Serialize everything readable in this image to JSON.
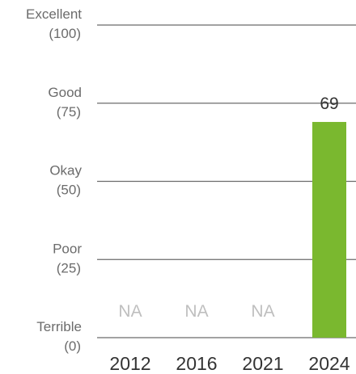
{
  "chart_data": {
    "type": "bar",
    "title": "",
    "xlabel": "",
    "ylabel": "",
    "categories": [
      "2012",
      "2016",
      "2021",
      "2024"
    ],
    "values": [
      null,
      null,
      null,
      69
    ],
    "value_labels": [
      "NA",
      "NA",
      "NA",
      "69"
    ],
    "ylim": [
      0,
      100
    ],
    "yticks": [
      {
        "value": 100,
        "name": "Excellent",
        "value_label": "(100)"
      },
      {
        "value": 75,
        "name": "Good",
        "value_label": "(75)"
      },
      {
        "value": 50,
        "name": "Okay",
        "value_label": "(50)"
      },
      {
        "value": 25,
        "name": "Poor",
        "value_label": "(25)"
      },
      {
        "value": 0,
        "name": "Terrible",
        "value_label": "(0)"
      }
    ],
    "grid": true,
    "bar_color": "#7ab82f",
    "na_color": "#bfbfbf",
    "gridline_color": "#6b6b6b"
  }
}
